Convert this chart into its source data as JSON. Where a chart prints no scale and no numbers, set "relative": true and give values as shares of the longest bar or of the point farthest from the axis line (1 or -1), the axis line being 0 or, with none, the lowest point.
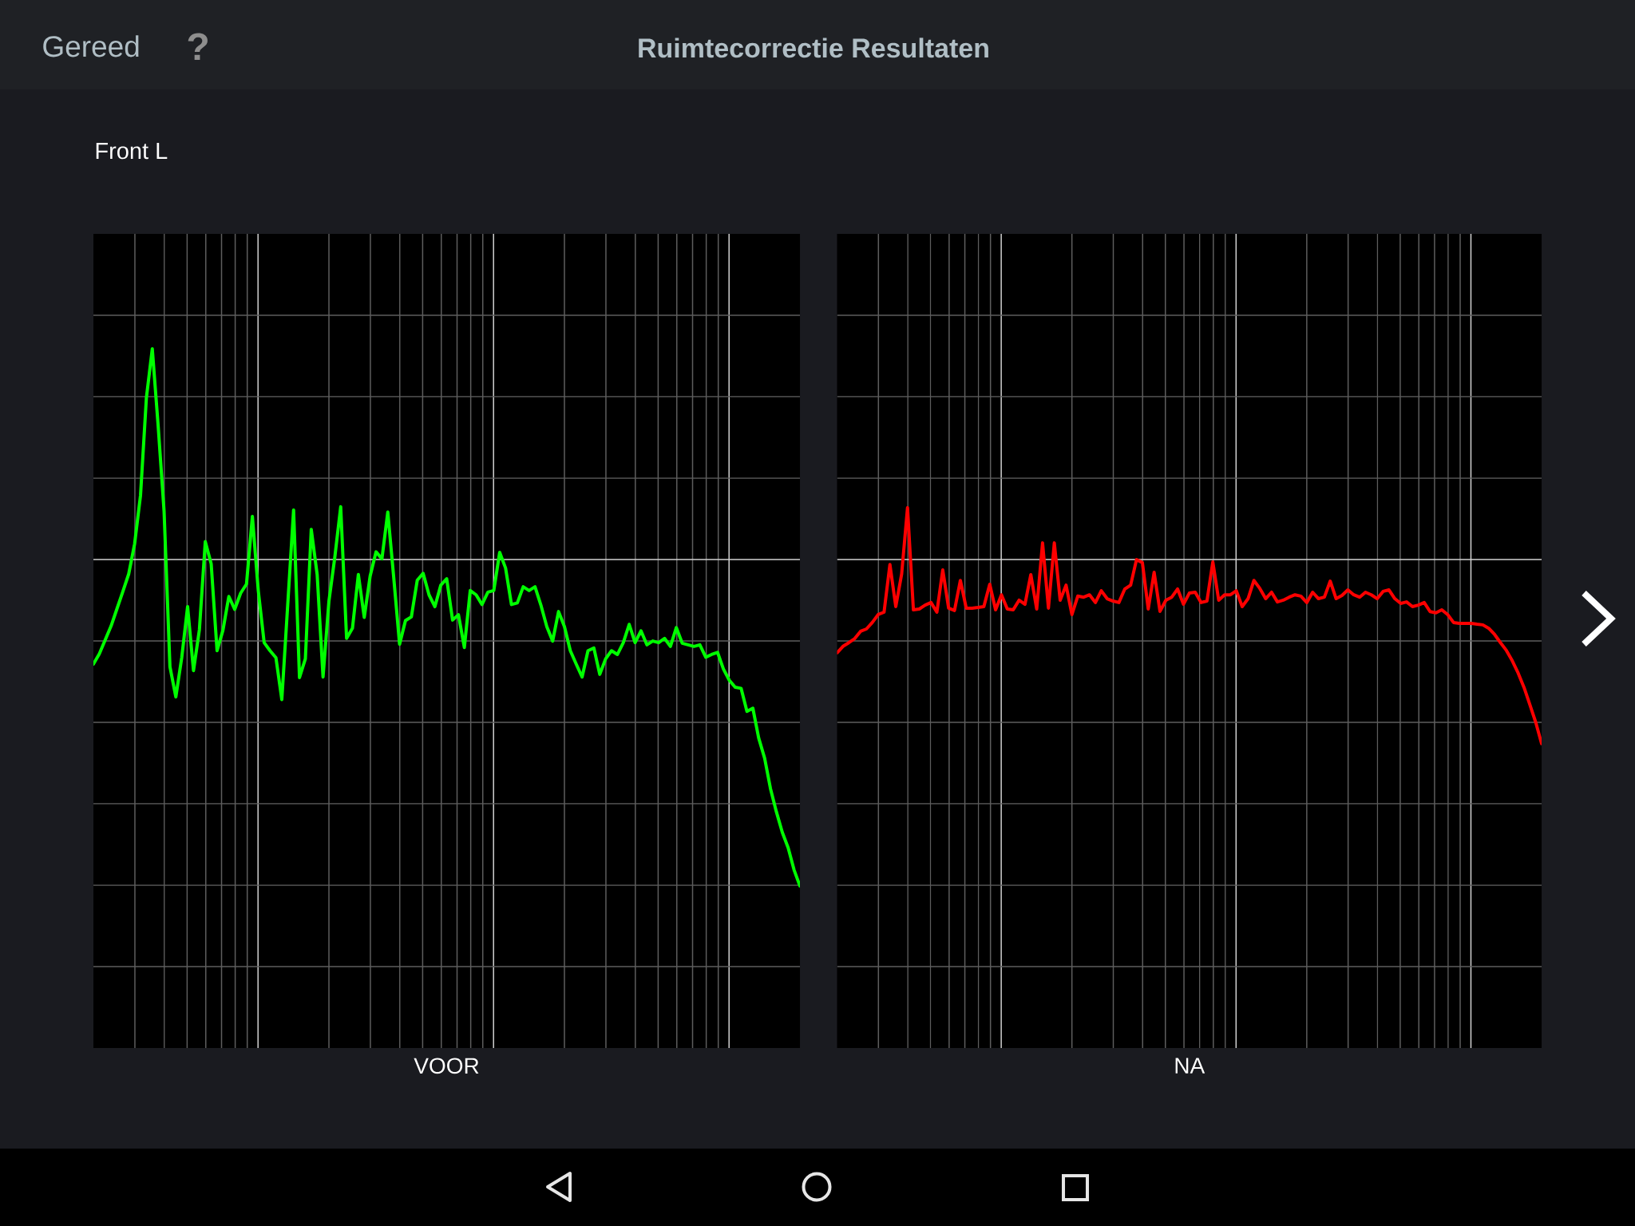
{
  "chart_data": [
    {
      "type": "line",
      "title": "Ruimtecorrectie Resultaten",
      "subtitle": "Front L",
      "xlabel": "VOOR",
      "annotations": [
        "Gereed",
        "?"
      ],
      "relative": true,
      "grid": true,
      "categories": [
        null,
        null,
        null,
        null,
        null,
        null,
        null,
        null,
        null,
        null,
        null,
        null,
        null,
        null,
        null,
        null,
        null,
        null,
        null,
        null,
        null,
        null,
        null,
        null,
        null,
        null,
        null,
        null,
        null,
        null,
        null,
        null,
        null,
        null,
        null,
        null,
        null,
        null,
        null,
        null,
        null,
        null,
        null,
        null,
        null,
        null,
        null,
        null,
        null,
        null,
        null,
        null,
        null,
        null,
        null,
        null,
        null,
        null,
        null,
        null,
        null,
        null,
        null,
        null,
        null,
        null,
        null,
        null,
        null,
        null,
        null,
        null,
        null,
        null,
        null,
        null,
        null,
        null,
        null,
        null,
        null,
        null,
        null,
        null,
        null,
        null,
        null,
        null,
        null,
        null,
        null,
        null,
        null,
        null,
        null,
        null,
        null,
        null,
        null,
        null,
        null,
        null,
        null,
        null,
        null,
        null,
        null,
        null,
        null,
        null,
        null,
        null,
        null,
        null,
        null,
        null,
        null,
        null,
        null,
        null,
        null
      ],
      "series": [
        {
          "color": "#00ff00",
          "values": [
            0.413,
            0.432,
            0.458,
            0.484,
            0.516,
            0.548,
            0.581,
            0.637,
            0.727,
            0.909,
            1.0,
            0.856,
            0.698,
            0.408,
            0.352,
            0.425,
            0.52,
            0.401,
            0.477,
            0.641,
            0.6,
            0.438,
            0.476,
            0.539,
            0.515,
            0.545,
            0.562,
            0.688,
            0.55,
            0.453,
            0.438,
            0.425,
            0.347,
            0.523,
            0.7,
            0.388,
            0.423,
            0.664,
            0.58,
            0.389,
            0.53,
            0.612,
            0.706,
            0.461,
            0.48,
            0.58,
            0.5,
            0.577,
            0.622,
            0.609,
            0.696,
            0.575,
            0.45,
            0.494,
            0.501,
            0.569,
            0.582,
            0.542,
            0.52,
            0.56,
            0.572,
            0.495,
            0.505,
            0.444,
            0.55,
            0.542,
            0.524,
            0.547,
            0.55,
            0.621,
            0.592,
            0.524,
            0.527,
            0.557,
            0.55,
            0.557,
            0.523,
            0.483,
            0.456,
            0.511,
            0.483,
            0.438,
            0.413,
            0.389,
            0.438,
            0.443,
            0.394,
            0.423,
            0.438,
            0.431,
            0.453,
            0.487,
            0.453,
            0.475,
            0.449,
            0.456,
            0.453,
            0.461,
            0.446,
            0.481,
            0.452,
            0.449,
            0.446,
            0.449,
            0.426,
            0.431,
            0.435,
            0.404,
            0.383,
            0.37,
            0.368,
            0.325,
            0.331,
            0.275,
            0.238,
            0.181,
            0.138,
            0.1,
            0.071,
            0.03,
            0.0
          ]
        }
      ]
    },
    {
      "type": "line",
      "xlabel": "NA",
      "relative": true,
      "grid": true,
      "categories": [
        null,
        null,
        null,
        null,
        null,
        null,
        null,
        null,
        null,
        null,
        null,
        null,
        null,
        null,
        null,
        null,
        null,
        null,
        null,
        null,
        null,
        null,
        null,
        null,
        null,
        null,
        null,
        null,
        null,
        null,
        null,
        null,
        null,
        null,
        null,
        null,
        null,
        null,
        null,
        null,
        null,
        null,
        null,
        null,
        null,
        null,
        null,
        null,
        null,
        null,
        null,
        null,
        null,
        null,
        null,
        null,
        null,
        null,
        null,
        null,
        null,
        null,
        null,
        null,
        null,
        null,
        null,
        null,
        null,
        null,
        null,
        null,
        null,
        null,
        null,
        null,
        null,
        null,
        null,
        null,
        null,
        null,
        null,
        null,
        null,
        null,
        null,
        null,
        null,
        null,
        null,
        null,
        null,
        null,
        null,
        null,
        null,
        null,
        null,
        null,
        null,
        null,
        null,
        null,
        null,
        null,
        null,
        null,
        null,
        null,
        null,
        null,
        null,
        null,
        null,
        null,
        null,
        null,
        null,
        null,
        null
      ],
      "series": [
        {
          "color": "#ff0000",
          "values": [
            0.324,
            0.354,
            0.371,
            0.39,
            0.424,
            0.435,
            0.465,
            0.502,
            0.513,
            0.735,
            0.539,
            0.691,
            1.0,
            0.524,
            0.528,
            0.546,
            0.558,
            0.513,
            0.71,
            0.532,
            0.521,
            0.661,
            0.532,
            0.532,
            0.535,
            0.539,
            0.643,
            0.524,
            0.594,
            0.528,
            0.524,
            0.569,
            0.55,
            0.688,
            0.528,
            0.836,
            0.532,
            0.836,
            0.569,
            0.639,
            0.502,
            0.588,
            0.583,
            0.594,
            0.558,
            0.613,
            0.576,
            0.565,
            0.558,
            0.621,
            0.639,
            0.758,
            0.744,
            0.528,
            0.699,
            0.517,
            0.569,
            0.583,
            0.621,
            0.55,
            0.602,
            0.606,
            0.558,
            0.565,
            0.747,
            0.569,
            0.594,
            0.594,
            0.613,
            0.539,
            0.576,
            0.661,
            0.624,
            0.576,
            0.606,
            0.561,
            0.569,
            0.583,
            0.594,
            0.588,
            0.558,
            0.606,
            0.576,
            0.583,
            0.658,
            0.576,
            0.591,
            0.617,
            0.594,
            0.583,
            0.606,
            0.594,
            0.576,
            0.61,
            0.617,
            0.576,
            0.554,
            0.561,
            0.539,
            0.546,
            0.558,
            0.516,
            0.51,
            0.524,
            0.502,
            0.465,
            0.461,
            0.461,
            0.461,
            0.457,
            0.454,
            0.438,
            0.409,
            0.371,
            0.335,
            0.287,
            0.23,
            0.163,
            0.082,
            0.0,
            -0.099
          ]
        }
      ]
    }
  ]
}
